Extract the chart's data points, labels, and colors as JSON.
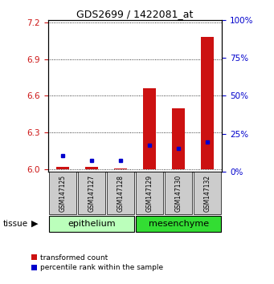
{
  "title": "GDS2699 / 1422081_at",
  "samples": [
    "GSM147125",
    "GSM147127",
    "GSM147128",
    "GSM147129",
    "GSM147130",
    "GSM147132"
  ],
  "tissue_groups": [
    {
      "name": "epithelium",
      "color": "#bbffbb",
      "samples": [
        0,
        1,
        2
      ]
    },
    {
      "name": "mesenchyme",
      "color": "#33dd33",
      "samples": [
        3,
        4,
        5
      ]
    }
  ],
  "red_values": [
    6.02,
    6.02,
    6.01,
    6.66,
    6.5,
    7.08
  ],
  "blue_values_pct": [
    10.5,
    7.5,
    7.5,
    17.5,
    15.5,
    19.5
  ],
  "red_base": 6.0,
  "ylim_left": [
    5.98,
    7.22
  ],
  "ylim_right": [
    0,
    100
  ],
  "yticks_left": [
    6.0,
    6.3,
    6.6,
    6.9,
    7.2
  ],
  "yticks_right": [
    0,
    25,
    50,
    75,
    100
  ],
  "bar_width": 0.45,
  "bar_color": "#cc1111",
  "dot_color": "#0000cc",
  "axis_color_left": "#cc1111",
  "axis_color_right": "#0000cc",
  "sample_bg_color": "#cccccc",
  "tissue_label": "tissue",
  "legend_red": "transformed count",
  "legend_blue": "percentile rank within the sample"
}
